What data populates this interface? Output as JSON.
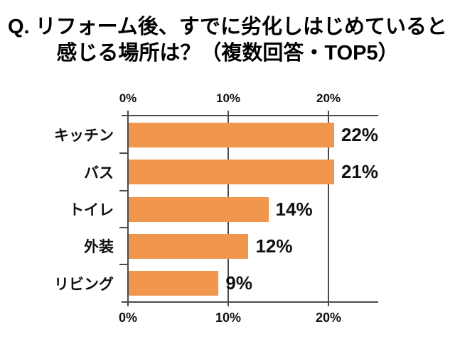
{
  "title": {
    "line1": "Q. リフォーム後、すでに劣化しはじめていると",
    "line2": "感じる場所は？（複数回答・TOP5）"
  },
  "chart_data": {
    "type": "bar",
    "orientation": "horizontal",
    "title": "Q. リフォーム後、すでに劣化しはじめていると感じる場所は？（複数回答・TOP5）",
    "categories": [
      "キッチン",
      "バス",
      "トイレ",
      "外装",
      "リビング"
    ],
    "values": [
      22,
      21,
      14,
      12,
      9
    ],
    "value_labels": [
      "22%",
      "21%",
      "14%",
      "12%",
      "9%"
    ],
    "xlabel": "",
    "ylabel": "",
    "xlim": [
      0,
      25
    ],
    "x_ticks": [
      0,
      10,
      20
    ],
    "x_tick_labels": [
      "0%",
      "10%",
      "20%"
    ],
    "axis_position": "ticks shown on top and bottom",
    "grid": true,
    "legend": false,
    "bar_color": "#F0964D",
    "axis_color": "#4a4a4a",
    "text_color": "#111111",
    "background_color": "#ffffff"
  }
}
